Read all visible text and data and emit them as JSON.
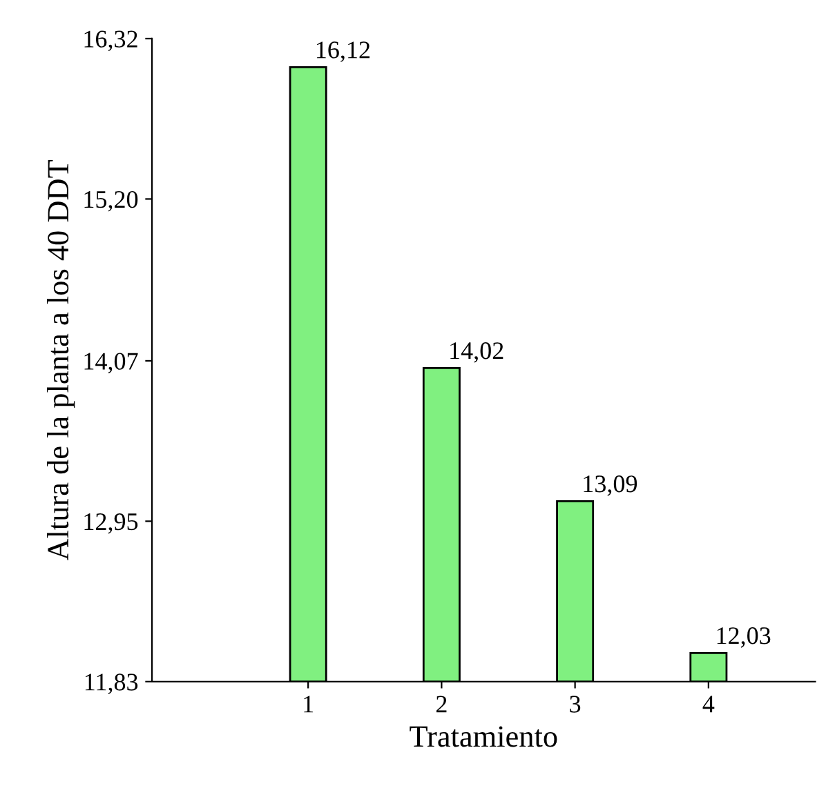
{
  "chart_data": {
    "type": "bar",
    "xlabel": "Tratamiento",
    "ylabel": "Altura de la planta a los 40 DDT",
    "categories": [
      "1",
      "2",
      "3",
      "4"
    ],
    "values": [
      16.12,
      14.02,
      13.09,
      12.03
    ],
    "value_labels": [
      "16,12",
      "14,02",
      "13,09",
      "12,03"
    ],
    "color": "#80f080",
    "ylim": [
      11.83,
      16.32
    ],
    "yticks": [
      {
        "value": 11.83,
        "label": "11,83"
      },
      {
        "value": 12.95,
        "label": "12,95"
      },
      {
        "value": 14.07,
        "label": "14,07"
      },
      {
        "value": 15.2,
        "label": "15,20"
      },
      {
        "value": 16.32,
        "label": "16,32"
      }
    ],
    "grid": false,
    "legend": false
  }
}
